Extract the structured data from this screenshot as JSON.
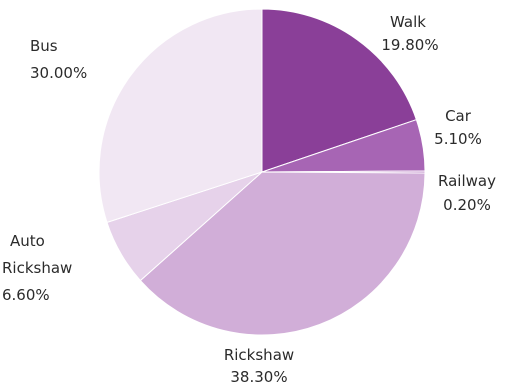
{
  "chart_data": {
    "type": "pie",
    "start_angle_deg": 0,
    "direction": "clockwise",
    "colors": {
      "Walk": "#8a3f98",
      "Car": "#a765b4",
      "Railway": "#b77cc2",
      "Rickshaw": "#d1aed8",
      "Auto Rickshaw": "#e6d2ea",
      "Bus": "#f1e7f3"
    },
    "slices": [
      {
        "label": "Walk",
        "value": 19.8,
        "value_text": "19.80%"
      },
      {
        "label": "Car",
        "value": 5.1,
        "value_text": "5.10%"
      },
      {
        "label": "Railway",
        "value": 0.2,
        "value_text": "0.20%"
      },
      {
        "label": "Rickshaw",
        "value": 38.3,
        "value_text": "38.30%"
      },
      {
        "label": "Auto Rickshaw",
        "value": 6.6,
        "value_text": "6.60%"
      },
      {
        "label": "Bus",
        "value": 30.0,
        "value_text": "30.00%"
      }
    ],
    "labels": {
      "walk_name": "Walk",
      "walk_value": "19.80%",
      "car_name": "Car",
      "car_value": "5.10%",
      "railway_name": "Railway",
      "railway_value": "0.20%",
      "rickshaw_name": "Rickshaw",
      "rickshaw_value": "38.30%",
      "auto_line1": "Auto",
      "auto_line2": "Rickshaw",
      "auto_value": "6.60%",
      "bus_name": "Bus",
      "bus_value": "30.00%"
    }
  }
}
